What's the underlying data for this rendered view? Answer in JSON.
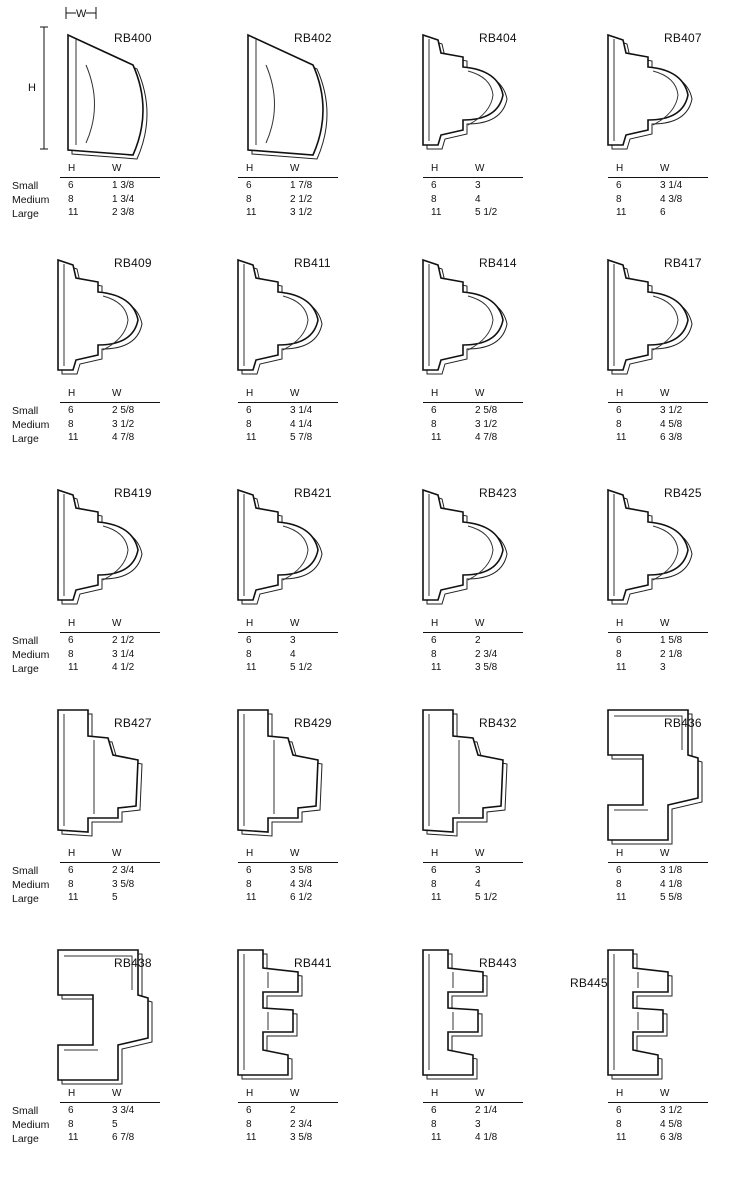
{
  "size_labels": [
    "Small",
    "Medium",
    "Large"
  ],
  "dimension_labels": {
    "height": "H",
    "width": "W"
  },
  "table_header": {
    "h": "H",
    "w": "W"
  },
  "products": [
    {
      "code": "RB400",
      "rows": [
        {
          "h": "6",
          "w": "1 3/8"
        },
        {
          "h": "8",
          "w": "1 3/4"
        },
        {
          "h": "11",
          "w": "2 3/8"
        }
      ]
    },
    {
      "code": "RB402",
      "rows": [
        {
          "h": "6",
          "w": "1 7/8"
        },
        {
          "h": "8",
          "w": "2 1/2"
        },
        {
          "h": "11",
          "w": "3 1/2"
        }
      ]
    },
    {
      "code": "RB404",
      "rows": [
        {
          "h": "6",
          "w": "3"
        },
        {
          "h": "8",
          "w": "4"
        },
        {
          "h": "11",
          "w": "5 1/2"
        }
      ]
    },
    {
      "code": "RB407",
      "rows": [
        {
          "h": "6",
          "w": "3 1/4"
        },
        {
          "h": "8",
          "w": "4 3/8"
        },
        {
          "h": "11",
          "w": "6"
        }
      ]
    },
    {
      "code": "RB409",
      "rows": [
        {
          "h": "6",
          "w": "2 5/8"
        },
        {
          "h": "8",
          "w": "3 1/2"
        },
        {
          "h": "11",
          "w": "4 7/8"
        }
      ]
    },
    {
      "code": "RB411",
      "rows": [
        {
          "h": "6",
          "w": "3 1/4"
        },
        {
          "h": "8",
          "w": "4 1/4"
        },
        {
          "h": "11",
          "w": "5 7/8"
        }
      ]
    },
    {
      "code": "RB414",
      "rows": [
        {
          "h": "6",
          "w": "2 5/8"
        },
        {
          "h": "8",
          "w": "3 1/2"
        },
        {
          "h": "11",
          "w": "4 7/8"
        }
      ]
    },
    {
      "code": "RB417",
      "rows": [
        {
          "h": "6",
          "w": "3 1/2"
        },
        {
          "h": "8",
          "w": "4 5/8"
        },
        {
          "h": "11",
          "w": "6 3/8"
        }
      ]
    },
    {
      "code": "RB419",
      "rows": [
        {
          "h": "6",
          "w": "2 1/2"
        },
        {
          "h": "8",
          "w": "3 1/4"
        },
        {
          "h": "11",
          "w": "4 1/2"
        }
      ]
    },
    {
      "code": "RB421",
      "rows": [
        {
          "h": "6",
          "w": "3"
        },
        {
          "h": "8",
          "w": "4"
        },
        {
          "h": "11",
          "w": "5 1/2"
        }
      ]
    },
    {
      "code": "RB423",
      "rows": [
        {
          "h": "6",
          "w": "2"
        },
        {
          "h": "8",
          "w": "2 3/4"
        },
        {
          "h": "11",
          "w": "3 5/8"
        }
      ]
    },
    {
      "code": "RB425",
      "rows": [
        {
          "h": "6",
          "w": "1 5/8"
        },
        {
          "h": "8",
          "w": "2 1/8"
        },
        {
          "h": "11",
          "w": "3"
        }
      ]
    },
    {
      "code": "RB427",
      "rows": [
        {
          "h": "6",
          "w": "2 3/4"
        },
        {
          "h": "8",
          "w": "3 5/8"
        },
        {
          "h": "11",
          "w": "5"
        }
      ]
    },
    {
      "code": "RB429",
      "rows": [
        {
          "h": "6",
          "w": "3 5/8"
        },
        {
          "h": "8",
          "w": "4 3/4"
        },
        {
          "h": "11",
          "w": "6 1/2"
        }
      ]
    },
    {
      "code": "RB432",
      "rows": [
        {
          "h": "6",
          "w": "3"
        },
        {
          "h": "8",
          "w": "4"
        },
        {
          "h": "11",
          "w": "5 1/2"
        }
      ]
    },
    {
      "code": "RB436",
      "rows": [
        {
          "h": "6",
          "w": "3 1/8"
        },
        {
          "h": "8",
          "w": "4 1/8"
        },
        {
          "h": "11",
          "w": "5 5/8"
        }
      ]
    },
    {
      "code": "RB438",
      "rows": [
        {
          "h": "6",
          "w": "3 3/4"
        },
        {
          "h": "8",
          "w": "5"
        },
        {
          "h": "11",
          "w": "6 7/8"
        }
      ]
    },
    {
      "code": "RB441",
      "rows": [
        {
          "h": "6",
          "w": "2"
        },
        {
          "h": "8",
          "w": "2 3/4"
        },
        {
          "h": "11",
          "w": "3 5/8"
        }
      ]
    },
    {
      "code": "RB443",
      "rows": [
        {
          "h": "6",
          "w": "2 1/4"
        },
        {
          "h": "8",
          "w": "3"
        },
        {
          "h": "11",
          "w": "4 1/8"
        }
      ]
    },
    {
      "code": "RB445",
      "rows": [
        {
          "h": "6",
          "w": "3 1/2"
        },
        {
          "h": "8",
          "w": "4 5/8"
        },
        {
          "h": "11",
          "w": "6 3/8"
        }
      ]
    }
  ]
}
